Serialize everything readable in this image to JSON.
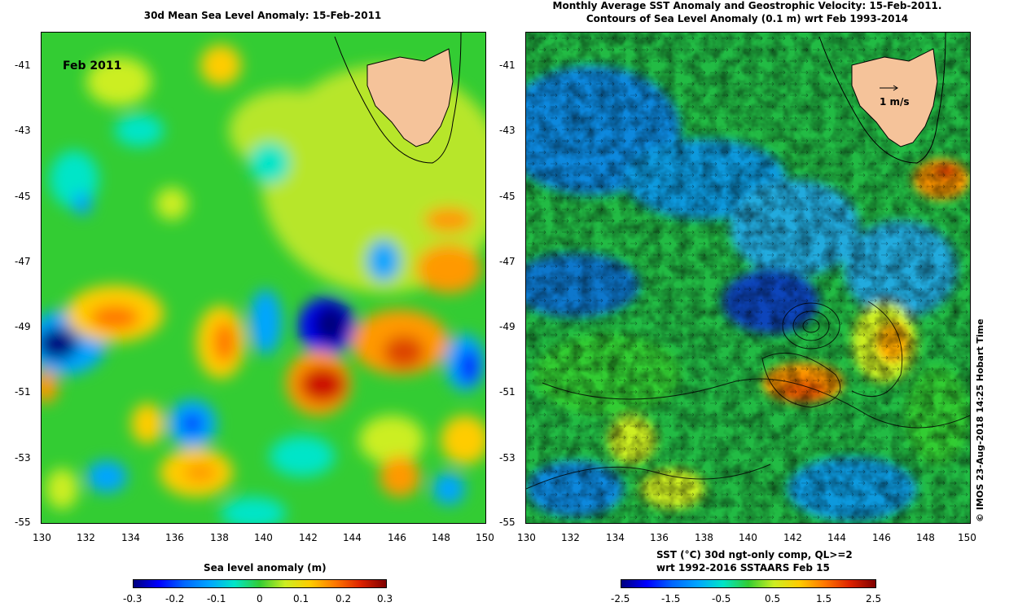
{
  "left_panel": {
    "title": "30d Mean Sea Level Anomaly: 15-Feb-2011",
    "inset_label": "Feb 2011",
    "y_ticks": [
      "-41",
      "-43",
      "-45",
      "-47",
      "-49",
      "-51",
      "-53",
      "-55"
    ],
    "x_ticks": [
      "130",
      "132",
      "134",
      "136",
      "138",
      "140",
      "142",
      "144",
      "146",
      "148",
      "150"
    ],
    "colorbar_title": "Sea level anomaly (m)",
    "colorbar_ticks": [
      "-0.3",
      "-0.2",
      "-0.1",
      "0",
      "0.1",
      "0.2",
      "0.3"
    ]
  },
  "right_panel": {
    "title_line1": "Monthly Average SST Anomaly  and Geostrophic Velocity: 15-Feb-2011.",
    "title_line2": "Contours of Sea Level Anomaly (0.1 m) wrt Feb 1993-2014",
    "velocity_scale_label": "1 m/s",
    "y_ticks": [
      "-41",
      "-43",
      "-45",
      "-47",
      "-49",
      "-51",
      "-53",
      "-55"
    ],
    "x_ticks": [
      "130",
      "132",
      "134",
      "136",
      "138",
      "140",
      "142",
      "144",
      "146",
      "148",
      "150"
    ],
    "colorbar_title_line1": "SST (°C) 30d ngt-only comp, QL>=2",
    "colorbar_title_line2": "wrt 1992-2016 SSTAARS Feb 15",
    "colorbar_ticks": [
      "-2.5",
      "-1.5",
      "-0.5",
      "0.5",
      "1.5",
      "2.5"
    ]
  },
  "credit": "© IMOS 23-Aug-2018 14:25 Hobart Time",
  "colors": {
    "land": "#f5c39a",
    "background_green": "#2fc82f",
    "colormap": [
      "#00007f",
      "#0000ff",
      "#00a5ff",
      "#00e5c8",
      "#33cc33",
      "#ccee22",
      "#ffcc00",
      "#ff7700",
      "#dd2200",
      "#7f0000"
    ]
  }
}
